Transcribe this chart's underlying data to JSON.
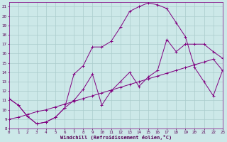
{
  "xlabel": "Windchill (Refroidissement éolien,°C)",
  "xlim": [
    0,
    23
  ],
  "ylim": [
    8,
    21.5
  ],
  "bg_color": "#cce8e8",
  "line_color": "#800080",
  "grid_color": "#aacccc",
  "line1_x": [
    0,
    1,
    2,
    3,
    4,
    5,
    6,
    7,
    8,
    9,
    10,
    11,
    12,
    13,
    14,
    15,
    16,
    17,
    18,
    19,
    20,
    21,
    22,
    23
  ],
  "line1_y": [
    11.2,
    10.5,
    9.3,
    8.5,
    8.7,
    9.2,
    10.2,
    13.8,
    14.7,
    16.7,
    16.7,
    17.3,
    18.8,
    20.5,
    21.0,
    21.4,
    21.2,
    20.8,
    19.3,
    17.8,
    14.5,
    13.0,
    11.5,
    14.2
  ],
  "line2_x": [
    0,
    1,
    2,
    3,
    4,
    5,
    6,
    7,
    8,
    9,
    10,
    11,
    12,
    13,
    14,
    15,
    16,
    17,
    18,
    19,
    20,
    21,
    22,
    23
  ],
  "line2_y": [
    11.2,
    10.5,
    9.3,
    8.5,
    8.7,
    9.2,
    10.2,
    11.0,
    12.2,
    13.8,
    10.5,
    12.0,
    13.0,
    14.0,
    12.5,
    13.5,
    14.2,
    17.5,
    16.2,
    17.0,
    17.0,
    17.0,
    16.2,
    15.5
  ],
  "line3_x": [
    0,
    1,
    2,
    3,
    4,
    5,
    6,
    7,
    8,
    9,
    10,
    11,
    12,
    13,
    14,
    15,
    16,
    17,
    18,
    19,
    20,
    21,
    22,
    23
  ],
  "line3_y": [
    9.0,
    9.2,
    9.5,
    9.8,
    10.0,
    10.3,
    10.6,
    10.9,
    11.2,
    11.5,
    11.8,
    12.1,
    12.4,
    12.7,
    13.0,
    13.3,
    13.6,
    13.9,
    14.2,
    14.5,
    14.8,
    15.1,
    15.4,
    14.2
  ]
}
